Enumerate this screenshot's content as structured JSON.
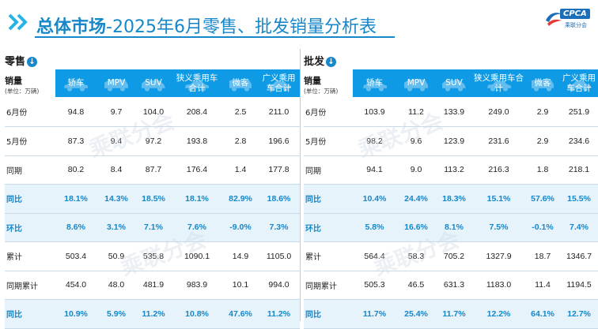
{
  "title": {
    "main": "总体市场",
    "sub": "-2025年6月零售、批发销量分析表"
  },
  "logo": {
    "brand": "CPCA",
    "subtitle": "乘联分会"
  },
  "columns": [
    "轿车",
    "MPV",
    "SUV",
    "狭义乘用车合计",
    "微客",
    "广义乘用车合计"
  ],
  "column_icons": [
    "sedan-icon",
    "mpv-icon",
    "suv-icon",
    "car-icon",
    "minivan-icon",
    "car-icon"
  ],
  "retail": {
    "label": "零售",
    "corner": {
      "title": "销量",
      "unit": "(单位：万辆)"
    },
    "rows": [
      {
        "label": "6月份",
        "values": [
          "94.8",
          "9.7",
          "104.0",
          "208.4",
          "2.5",
          "211.0"
        ]
      },
      {
        "label": "5月份",
        "values": [
          "87.3",
          "9.4",
          "97.2",
          "193.8",
          "2.8",
          "196.6"
        ]
      },
      {
        "label": "同期",
        "values": [
          "80.2",
          "8.4",
          "87.7",
          "176.4",
          "1.4",
          "177.8"
        ]
      },
      {
        "label": "同比",
        "values": [
          "18.1%",
          "14.3%",
          "18.5%",
          "18.1%",
          "82.9%",
          "18.6%"
        ]
      },
      {
        "label": "环比",
        "values": [
          "8.6%",
          "3.1%",
          "7.1%",
          "7.6%",
          "-9.0%",
          "7.3%"
        ]
      },
      {
        "label": "累计",
        "values": [
          "503.4",
          "50.9",
          "535.8",
          "1090.1",
          "14.9",
          "1105.0"
        ]
      },
      {
        "label": "同期累计",
        "values": [
          "454.0",
          "48.0",
          "481.9",
          "983.9",
          "10.1",
          "994.0"
        ]
      },
      {
        "label": "同比",
        "values": [
          "10.9%",
          "5.9%",
          "11.2%",
          "10.8%",
          "47.6%",
          "11.2%"
        ]
      }
    ]
  },
  "wholesale": {
    "label": "批发",
    "corner": {
      "title": "销量",
      "unit": "(单位：万辆)"
    },
    "rows": [
      {
        "label": "6月份",
        "values": [
          "103.9",
          "11.2",
          "133.9",
          "249.0",
          "2.9",
          "251.9"
        ]
      },
      {
        "label": "5月份",
        "values": [
          "98.2",
          "9.6",
          "123.9",
          "231.6",
          "2.9",
          "234.6"
        ]
      },
      {
        "label": "同期",
        "values": [
          "94.1",
          "9.0",
          "113.2",
          "216.3",
          "1.8",
          "218.1"
        ]
      },
      {
        "label": "同比",
        "values": [
          "10.4%",
          "24.4%",
          "18.3%",
          "15.1%",
          "57.6%",
          "15.5%"
        ]
      },
      {
        "label": "环比",
        "values": [
          "5.8%",
          "16.6%",
          "8.1%",
          "7.5%",
          "-0.1%",
          "7.4%"
        ]
      },
      {
        "label": "累计",
        "values": [
          "564.4",
          "58.3",
          "705.2",
          "1327.9",
          "18.7",
          "1346.7"
        ]
      },
      {
        "label": "同期累计",
        "values": [
          "505.3",
          "46.5",
          "631.3",
          "1183.0",
          "11.4",
          "1194.5"
        ]
      },
      {
        "label": "同比",
        "values": [
          "11.7%",
          "25.4%",
          "11.7%",
          "12.2%",
          "64.1%",
          "12.7%"
        ]
      }
    ]
  },
  "highlight_rows": [
    3,
    4,
    7
  ],
  "colors": {
    "accent": "#1687c9",
    "header_bg": "#0f9ae6",
    "highlight_bg": "#e6f3fb"
  }
}
